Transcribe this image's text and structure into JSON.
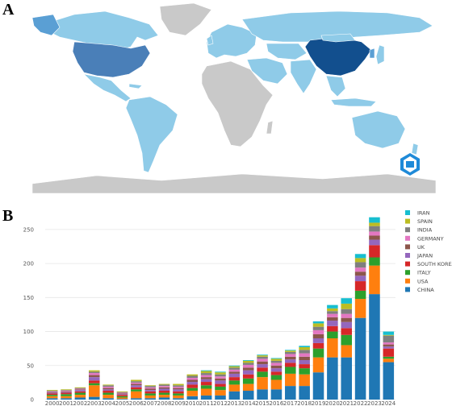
{
  "panels": {
    "a_label": "A",
    "b_label": "B"
  },
  "map": {
    "colors": {
      "ocean": "#ffffff",
      "none": "#c9c9c9",
      "low": "#8fcbe8",
      "mid": "#5a9fd4",
      "usa": "#4a7fb8",
      "china": "#124f8e"
    },
    "regions": [
      {
        "name": "North America (Canada)",
        "level": "low"
      },
      {
        "name": "Greenland",
        "level": "none"
      },
      {
        "name": "USA",
        "level": "usa"
      },
      {
        "name": "Mexico / Central America",
        "level": "low"
      },
      {
        "name": "South America",
        "level": "low"
      },
      {
        "name": "Europe",
        "level": "low"
      },
      {
        "name": "Africa",
        "level": "none"
      },
      {
        "name": "Russia",
        "level": "low"
      },
      {
        "name": "China",
        "level": "china"
      },
      {
        "name": "South Asia",
        "level": "low"
      },
      {
        "name": "Australia",
        "level": "low"
      },
      {
        "name": "Antarctica",
        "level": "none"
      }
    ]
  },
  "chart_data": {
    "type": "bar",
    "stacked": true,
    "categories": [
      "2000",
      "2001",
      "2002",
      "2003",
      "2004",
      "2005",
      "2006",
      "2007",
      "2008",
      "2009",
      "2010",
      "2011",
      "2012",
      "2013",
      "2014",
      "2015",
      "2016",
      "2017",
      "2018",
      "2019",
      "2020",
      "2021",
      "2022",
      "2023",
      "2024"
    ],
    "ylim": [
      0,
      270
    ],
    "yticks": [
      0,
      50,
      100,
      150,
      200,
      250
    ],
    "grid": true,
    "legend_position": "right",
    "series": [
      {
        "name": "CHINA",
        "color": "#1f77b4",
        "values": [
          2,
          2,
          3,
          4,
          2,
          1,
          2,
          2,
          3,
          2,
          5,
          6,
          6,
          12,
          13,
          15,
          15,
          20,
          20,
          40,
          62,
          62,
          120,
          155,
          55
        ]
      },
      {
        "name": "USA",
        "color": "#ff7f0e",
        "values": [
          3,
          3,
          4,
          17,
          5,
          2,
          10,
          4,
          4,
          4,
          8,
          10,
          8,
          10,
          10,
          18,
          14,
          18,
          17,
          22,
          28,
          18,
          28,
          42,
          5
        ]
      },
      {
        "name": "ITALY",
        "color": "#2ca02c",
        "values": [
          2,
          3,
          3,
          3,
          3,
          2,
          3,
          3,
          3,
          3,
          4,
          5,
          5,
          6,
          8,
          8,
          7,
          10,
          9,
          13,
          10,
          15,
          12,
          12,
          3
        ]
      },
      {
        "name": "SOUTH KOREA",
        "color": "#d62728",
        "values": [
          2,
          2,
          2,
          4,
          3,
          2,
          3,
          3,
          3,
          3,
          5,
          5,
          4,
          5,
          6,
          6,
          5,
          6,
          6,
          8,
          8,
          10,
          14,
          18,
          12
        ]
      },
      {
        "name": "JAPAN",
        "color": "#9467bd",
        "values": [
          1,
          1,
          2,
          5,
          2,
          1,
          3,
          2,
          3,
          3,
          4,
          4,
          5,
          5,
          6,
          5,
          5,
          5,
          6,
          7,
          8,
          9,
          8,
          8,
          3
        ]
      },
      {
        "name": "UK",
        "color": "#8c564b",
        "values": [
          1,
          1,
          1,
          3,
          2,
          1,
          2,
          2,
          2,
          2,
          3,
          3,
          3,
          3,
          4,
          4,
          4,
          4,
          5,
          6,
          5,
          6,
          6,
          6,
          3
        ]
      },
      {
        "name": "GERMANY",
        "color": "#e377c2",
        "values": [
          1,
          1,
          1,
          3,
          2,
          1,
          2,
          2,
          2,
          2,
          3,
          3,
          3,
          3,
          4,
          4,
          4,
          4,
          5,
          6,
          5,
          6,
          6,
          6,
          3
        ]
      },
      {
        "name": "INDIA",
        "color": "#7f7f7f",
        "values": [
          1,
          1,
          1,
          2,
          2,
          1,
          2,
          2,
          2,
          2,
          3,
          3,
          3,
          3,
          3,
          3,
          3,
          3,
          5,
          5,
          4,
          7,
          8,
          8,
          10
        ]
      },
      {
        "name": "SPAIN",
        "color": "#bcbd22",
        "values": [
          1,
          1,
          1,
          2,
          1,
          1,
          2,
          1,
          1,
          2,
          2,
          3,
          3,
          2,
          3,
          2,
          3,
          2,
          4,
          5,
          4,
          8,
          6,
          5,
          1
        ]
      },
      {
        "name": "IRAN",
        "color": "#17becf",
        "values": [
          0,
          0,
          0,
          0,
          0,
          0,
          0,
          0,
          0,
          0,
          0,
          1,
          1,
          1,
          1,
          1,
          1,
          1,
          2,
          3,
          5,
          8,
          6,
          8,
          5
        ]
      }
    ]
  }
}
